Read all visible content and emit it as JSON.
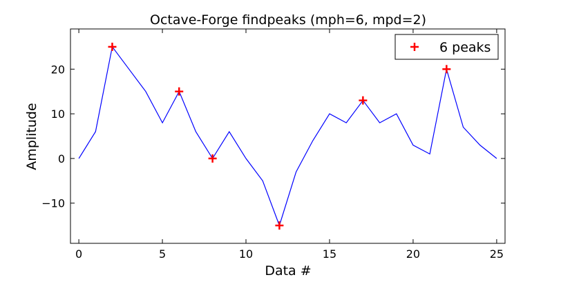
{
  "chart_data": {
    "type": "line",
    "title": "Octave-Forge findpeaks (mph=6, mpd=2)",
    "xlabel": "Data #",
    "ylabel": "Amplitude",
    "xlim": [
      -0.5,
      25.5
    ],
    "ylim": [
      -19,
      29
    ],
    "x_ticks": [
      0,
      5,
      10,
      15,
      20,
      25
    ],
    "y_ticks": [
      -10,
      0,
      10,
      20
    ],
    "y_tick_labels": [
      "−10",
      "0",
      "10",
      "20"
    ],
    "grid": false,
    "legend_position": "top-right",
    "series": [
      {
        "style": "line",
        "color": "#0000ff",
        "x": [
          0,
          1,
          2,
          3,
          4,
          5,
          6,
          7,
          8,
          9,
          10,
          11,
          12,
          13,
          14,
          15,
          16,
          17,
          18,
          19,
          20,
          21,
          22,
          23,
          24,
          25
        ],
        "y": [
          0,
          6,
          25,
          20,
          15,
          8,
          15,
          6,
          0,
          6,
          0,
          -5,
          -15,
          -3,
          4,
          10,
          8,
          13,
          8,
          10,
          3,
          1,
          20,
          7,
          3,
          0
        ]
      },
      {
        "style": "marker",
        "name": "6 peaks",
        "marker": "+",
        "color": "#ff0000",
        "x": [
          2,
          6,
          8,
          12,
          17,
          22
        ],
        "y": [
          25,
          15,
          0,
          -15,
          13,
          20
        ]
      }
    ]
  }
}
